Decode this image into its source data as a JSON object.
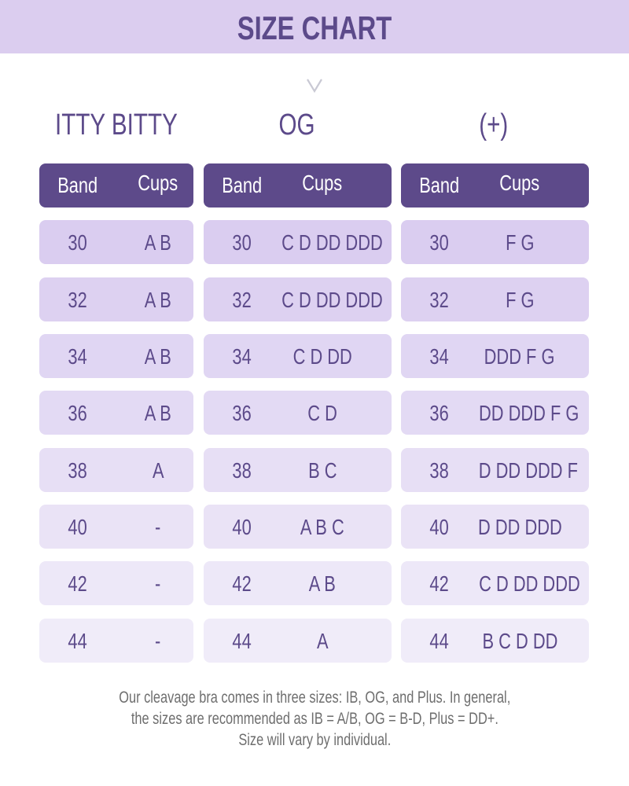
{
  "title": "SIZE CHART",
  "chevron_icon": "chevron-down-icon",
  "header_labels": {
    "band": "Band",
    "cups": "Cups"
  },
  "colors": {
    "accent": "#5d4a8a",
    "banner": "#dbcdef",
    "row_top": "#dacdf0",
    "row_bottom": "#f0ecf9"
  },
  "sizes": [
    {
      "name": "ITTY BITTY",
      "rows": [
        {
          "band": "30",
          "cups": "A B"
        },
        {
          "band": "32",
          "cups": "A B"
        },
        {
          "band": "34",
          "cups": "A B"
        },
        {
          "band": "36",
          "cups": "A B"
        },
        {
          "band": "38",
          "cups": "A"
        },
        {
          "band": "40",
          "cups": "-"
        },
        {
          "band": "42",
          "cups": "-"
        },
        {
          "band": "44",
          "cups": "-"
        }
      ]
    },
    {
      "name": "OG",
      "rows": [
        {
          "band": "30",
          "cups": "C D DD DDD"
        },
        {
          "band": "32",
          "cups": "C D DD DDD"
        },
        {
          "band": "34",
          "cups": "C D DD"
        },
        {
          "band": "36",
          "cups": "C D"
        },
        {
          "band": "38",
          "cups": "B C"
        },
        {
          "band": "40",
          "cups": "A B C"
        },
        {
          "band": "42",
          "cups": "A B"
        },
        {
          "band": "44",
          "cups": "A"
        }
      ]
    },
    {
      "name": "(+)",
      "rows": [
        {
          "band": "30",
          "cups": "F G"
        },
        {
          "band": "32",
          "cups": "F G"
        },
        {
          "band": "34",
          "cups": "DDD F G"
        },
        {
          "band": "36",
          "cups": "DD DDD F G"
        },
        {
          "band": "38",
          "cups": "D DD DDD F"
        },
        {
          "band": "40",
          "cups": "D DD DDD"
        },
        {
          "band": "42",
          "cups": "C D DD DDD"
        },
        {
          "band": "44",
          "cups": "B C D DD"
        }
      ]
    }
  ],
  "note": [
    "Our cleavage bra comes in three sizes: IB, OG, and Plus. In general,",
    "the sizes are recommended as IB = A/B, OG = B-D, Plus = DD+.",
    "Size will vary by individual."
  ]
}
